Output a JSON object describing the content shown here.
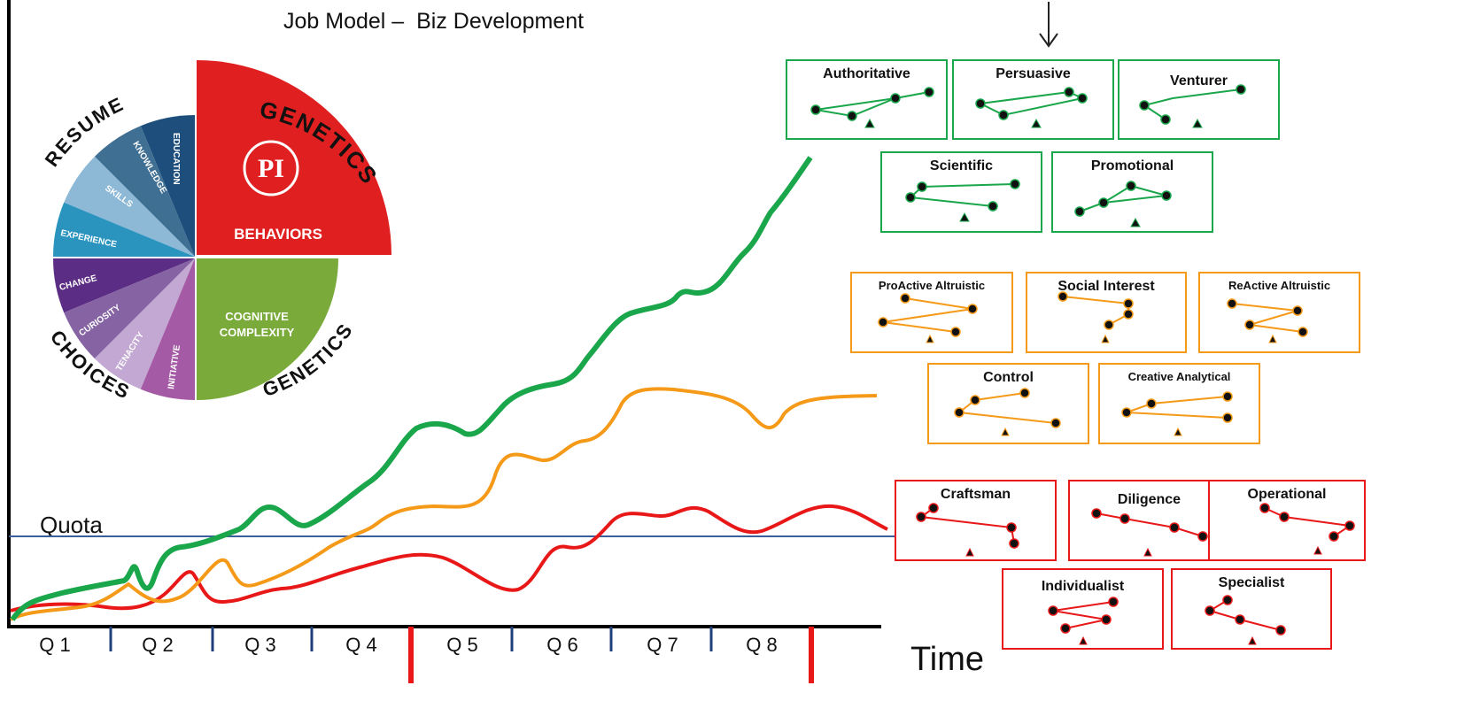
{
  "title": "Job Model –  Biz Development",
  "quota_label": "Quota",
  "time_label": "Time",
  "quarters": [
    "Q 1",
    "Q 2",
    "Q 3",
    "Q 4",
    "Q 5",
    "Q 6",
    "Q 7",
    "Q 8"
  ],
  "wheel": {
    "behaviors": "BEHAVIORS",
    "cognitive": [
      "COGNITIVE",
      "COMPLEXITY"
    ],
    "genetics_top": "GENETICS",
    "genetics_bottom": "GENETICS",
    "resume": "RESUME",
    "choices": "CHOICES",
    "pi_logo": "PI",
    "resume_segments": [
      "EDUCATION",
      "KNOWLEDGE",
      "SKILLS",
      "EXPERIENCE"
    ],
    "choice_segments": [
      "CHANGE",
      "CURIOSITY",
      "TENACITY",
      "INITIATIVE"
    ]
  },
  "colors": {
    "green": "#1aa64a",
    "orange": "#f59a18",
    "red": "#e81818",
    "quota_line": "#3a5f9a",
    "tick": "#1f3f7a"
  },
  "groups": [
    {
      "name": "green",
      "color": "#1aa64a",
      "profiles": [
        "Authoritative",
        "Persuasive",
        "Venturer",
        "Scientific",
        "Promotional"
      ]
    },
    {
      "name": "orange",
      "color": "#f59a18",
      "profiles": [
        "ProActive Altruistic",
        "Social Interest",
        "ReActive Altruistic",
        "Control",
        "Creative Analytical"
      ]
    },
    {
      "name": "red",
      "color": "#e81818",
      "profiles": [
        "Craftsman",
        "Diligence",
        "Operational",
        "Individualist",
        "Specialist"
      ]
    }
  ]
}
